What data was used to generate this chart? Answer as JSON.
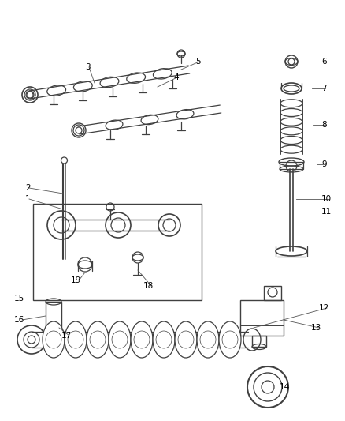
{
  "bg_color": "#ffffff",
  "line_color": "#404040",
  "label_color": "#000000",
  "fig_width": 4.38,
  "fig_height": 5.33,
  "dpi": 100,
  "leader_color": "#555555",
  "part_lw": 0.9,
  "label_fs": 7.5
}
